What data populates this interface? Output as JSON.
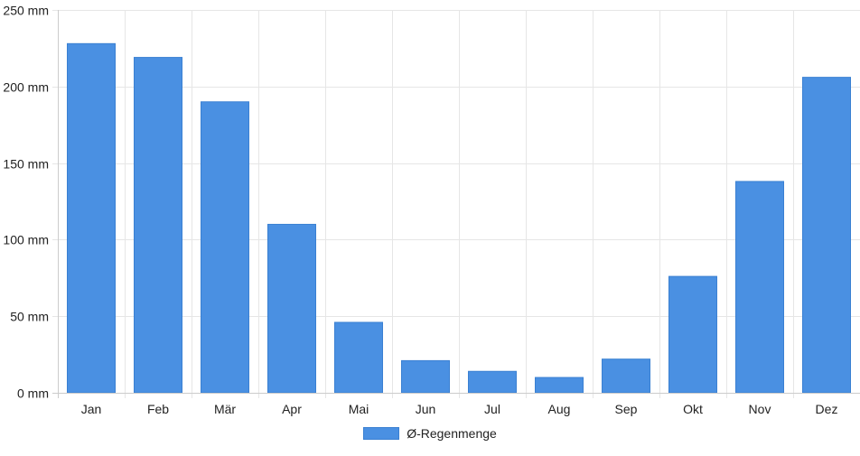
{
  "chart_data": {
    "type": "bar",
    "categories": [
      "Jan",
      "Feb",
      "Mär",
      "Apr",
      "Mai",
      "Jun",
      "Jul",
      "Aug",
      "Sep",
      "Okt",
      "Nov",
      "Dez"
    ],
    "series": [
      {
        "name": "Ø-Regenmenge",
        "values": [
          228,
          219,
          190,
          110,
          46,
          21,
          14,
          10,
          22,
          76,
          138,
          206
        ]
      }
    ],
    "y_ticks": [
      "0 mm",
      "50 mm",
      "100 mm",
      "150 mm",
      "200 mm",
      "250 mm"
    ],
    "ylim": [
      0,
      250
    ],
    "grid": true,
    "legend_position": "bottom",
    "colors": {
      "bar": "#4a90e2",
      "bar_border": "#3a80d2",
      "grid": "#e6e6e6",
      "axis": "#cccccc"
    }
  }
}
